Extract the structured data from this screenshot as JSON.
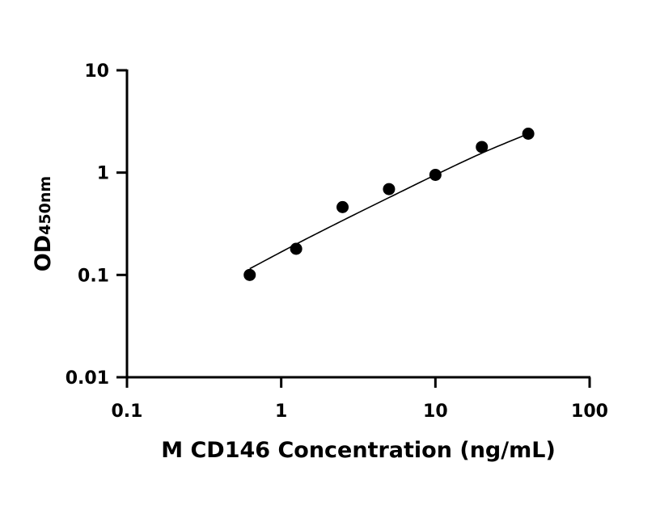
{
  "chart_data": {
    "type": "scatter",
    "x_scale": "log",
    "y_scale": "log",
    "xlim": [
      0.1,
      100
    ],
    "ylim": [
      0.01,
      10
    ],
    "x_ticks": [
      0.1,
      1,
      10,
      100
    ],
    "x_tick_labels": [
      "0.1",
      "1",
      "10",
      "100"
    ],
    "y_ticks": [
      0.01,
      0.1,
      1,
      10
    ],
    "y_tick_labels": [
      "0.01",
      "0.1",
      "1",
      "10"
    ],
    "xlabel": "M CD146 Concentration (ng/mL)",
    "ylabel_main": "OD",
    "ylabel_sub": "450nm",
    "grid": false,
    "legend": false,
    "series": [
      {
        "points": [
          {
            "x": 0.625,
            "y": 0.1
          },
          {
            "x": 1.25,
            "y": 0.18
          },
          {
            "x": 2.5,
            "y": 0.46
          },
          {
            "x": 5,
            "y": 0.69
          },
          {
            "x": 10,
            "y": 0.95
          },
          {
            "x": 20,
            "y": 1.78
          },
          {
            "x": 40,
            "y": 2.4
          }
        ],
        "fit_curve": {
          "x": [
            0.625,
            1.25,
            2.5,
            5,
            10,
            20,
            40
          ],
          "y": [
            0.115,
            0.2,
            0.34,
            0.57,
            0.95,
            1.55,
            2.4
          ]
        }
      }
    ]
  }
}
